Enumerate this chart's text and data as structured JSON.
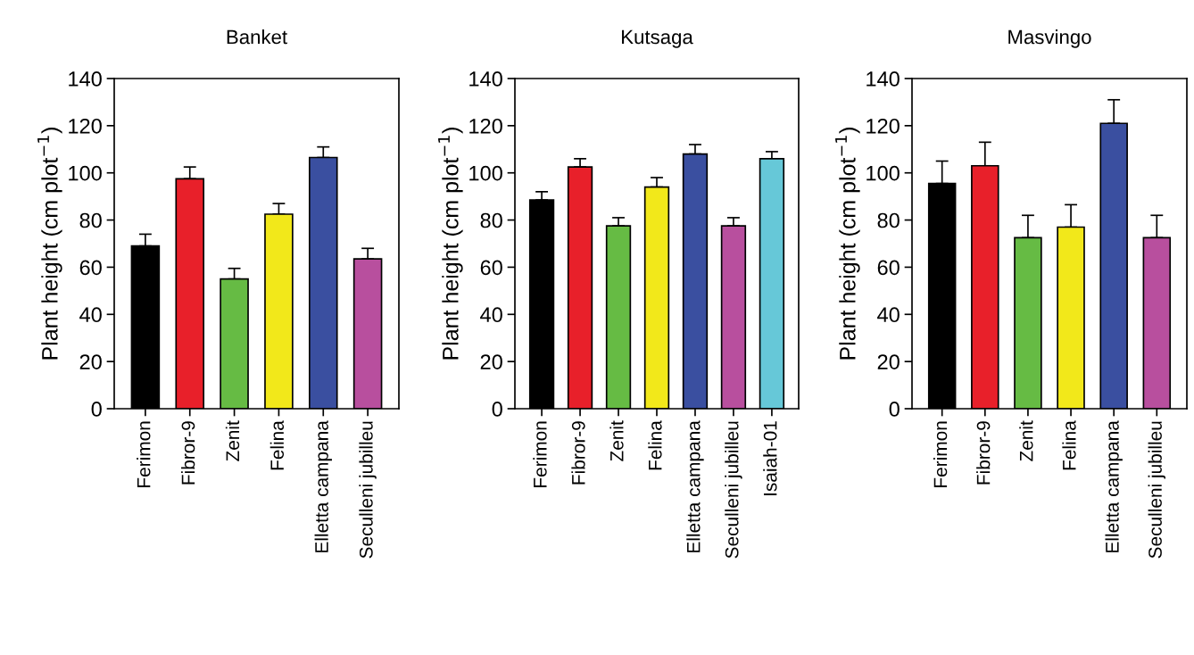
{
  "chart_data": [
    {
      "type": "bar",
      "title": "Banket",
      "ylabel": "Plant height (cm plot$^{−1}$)",
      "categories": [
        "Ferimon",
        "Fibror-9",
        "Zenit",
        "Felina",
        "Elletta campana",
        "Seculleni jubilleu"
      ],
      "values": [
        69,
        97.5,
        55,
        82.5,
        106.5,
        63.5
      ],
      "colors": [
        "#000000",
        "#e8202a",
        "#66bb44",
        "#f2e81a",
        "#3a4fa0",
        "#b84f9e"
      ],
      "errors": [
        [
          69,
          74
        ],
        [
          97.5,
          102.5
        ],
        [
          55,
          59.5
        ],
        [
          82.5,
          87
        ],
        [
          106.5,
          111
        ],
        [
          63.5,
          68
        ]
      ],
      "ylim": [
        0,
        140
      ],
      "yticks": [
        0,
        20,
        40,
        60,
        80,
        100,
        120,
        140
      ],
      "grid": false,
      "legend": false
    },
    {
      "type": "bar",
      "title": "Kutsaga",
      "ylabel": "Plant height (cm plot$^{−1}$)",
      "categories": [
        "Ferimon",
        "Fibror-9",
        "Zenit",
        "Felina",
        "Elletta campana",
        "Seculleni jubilleu",
        "Isaiah-01"
      ],
      "values": [
        88.5,
        102.5,
        77.5,
        94,
        108,
        77.5,
        106
      ],
      "colors": [
        "#000000",
        "#e8202a",
        "#66bb44",
        "#f2e81a",
        "#3a4fa0",
        "#b84f9e",
        "#66c8d8"
      ],
      "errors": [
        [
          88.5,
          92
        ],
        [
          102.5,
          106
        ],
        [
          77.5,
          81
        ],
        [
          94,
          98
        ],
        [
          108,
          112
        ],
        [
          77.5,
          81
        ],
        [
          106,
          109
        ]
      ],
      "ylim": [
        0,
        140
      ],
      "yticks": [
        0,
        20,
        40,
        60,
        80,
        100,
        120,
        140
      ],
      "grid": false,
      "legend": false
    },
    {
      "type": "bar",
      "title": "Masvingo",
      "ylabel": "Plant height (cm plot$^{−1}$)",
      "categories": [
        "Ferimon",
        "Fibror-9",
        "Zenit",
        "Felina",
        "Elletta campana",
        "Seculleni jubilleu"
      ],
      "values": [
        95.5,
        103,
        72.5,
        77,
        121,
        72.5
      ],
      "colors": [
        "#000000",
        "#e8202a",
        "#66bb44",
        "#f2e81a",
        "#3a4fa0",
        "#b84f9e"
      ],
      "errors": [
        [
          95.5,
          105
        ],
        [
          103,
          113
        ],
        [
          72.5,
          82
        ],
        [
          77,
          86.5
        ],
        [
          121,
          131
        ],
        [
          72.5,
          82
        ]
      ],
      "ylim": [
        0,
        140
      ],
      "yticks": [
        0,
        20,
        40,
        60,
        80,
        100,
        120,
        140
      ],
      "grid": false,
      "legend": false
    }
  ]
}
